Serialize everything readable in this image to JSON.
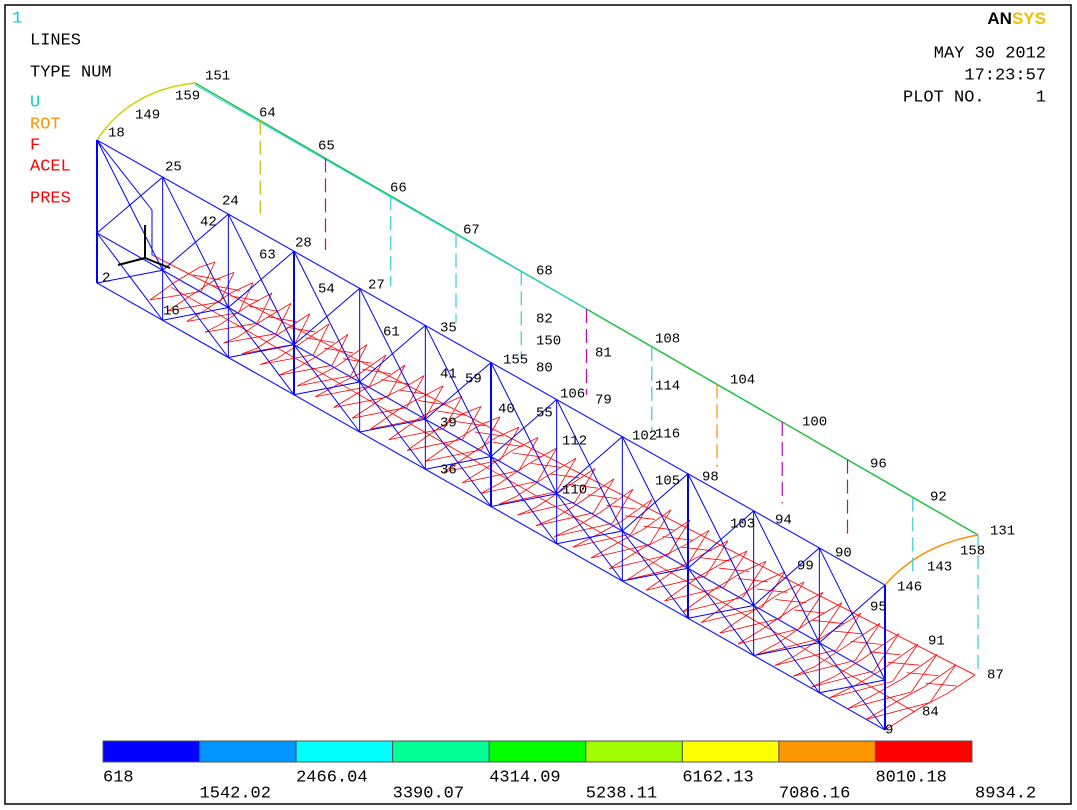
{
  "window_number": "1",
  "plot_info": {
    "items": [
      {
        "text": "LINES",
        "color": "#000000"
      },
      {
        "text": "TYPE NUM",
        "color": "#000000"
      },
      {
        "text": "U",
        "color": "#00d0d0"
      },
      {
        "text": "ROT",
        "color": "#ff9000"
      },
      {
        "text": "F",
        "color": "#ff0000"
      },
      {
        "text": "ACEL",
        "color": "#ff0000"
      },
      {
        "text": "PRES",
        "color": "#ff0000"
      }
    ]
  },
  "logo": {
    "parts": [
      "AN",
      "SYS"
    ]
  },
  "date": "MAY 30 2012",
  "time": "17:23:57",
  "plot_number_label": "PLOT NO.",
  "plot_number": "1",
  "node_labels": [
    "25",
    "24",
    "42",
    "28",
    "63",
    "54",
    "27",
    "61",
    "35",
    "67",
    "66",
    "65",
    "64",
    "68",
    "82",
    "80",
    "81",
    "106",
    "79",
    "114",
    "108",
    "104",
    "100",
    "96",
    "92",
    "131",
    "158",
    "143",
    "146",
    "91",
    "87",
    "84",
    "9",
    "90",
    "94",
    "98",
    "99",
    "95",
    "103",
    "105",
    "102",
    "116",
    "40",
    "39",
    "36",
    "59",
    "41",
    "55",
    "112",
    "110",
    "150",
    "155",
    "151",
    "159",
    "149",
    "18",
    "2",
    "16"
  ],
  "contour_legend": {
    "colors": [
      "#0000ff",
      "#0095ff",
      "#00ffff",
      "#00ff95",
      "#00ff00",
      "#a0ff00",
      "#ffff00",
      "#ff9500",
      "#ff0000"
    ],
    "values": [
      618,
      1542.02,
      2466.04,
      3390.07,
      4314.09,
      5238.11,
      6162.13,
      7086.16,
      8010.18,
      8934.2
    ]
  }
}
